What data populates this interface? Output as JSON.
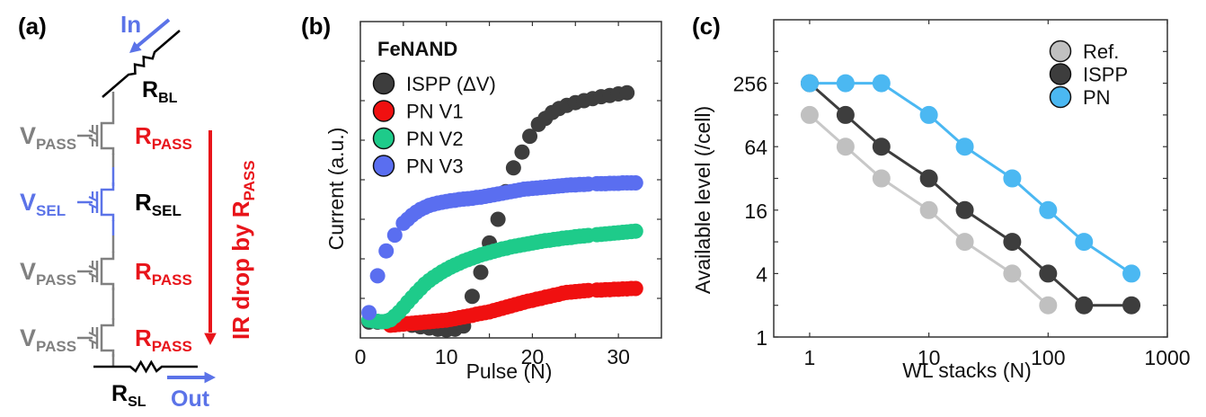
{
  "panels": {
    "a": {
      "label": "(a)"
    },
    "b": {
      "label": "(b)"
    },
    "c": {
      "label": "(c)"
    }
  },
  "circuit": {
    "colors": {
      "pass": "#808080",
      "sel": "#5b73e8",
      "line": "#000000",
      "red": "#e8141a",
      "flow": "#5b73e8"
    },
    "in_label": "In",
    "out_label": "Out",
    "r_bl": {
      "main": "R",
      "sub": "BL"
    },
    "r_sl": {
      "main": "R",
      "sub": "SL"
    },
    "ir_drop": {
      "main": "IR drop by R",
      "sub": "PASS"
    },
    "cells": [
      {
        "gate": {
          "main": "V",
          "sub": "PASS"
        },
        "res": {
          "main": "R",
          "sub": "PASS"
        },
        "type": "pass"
      },
      {
        "gate": {
          "main": "V",
          "sub": "SEL"
        },
        "res": {
          "main": "R",
          "sub": "SEL"
        },
        "type": "sel"
      },
      {
        "gate": {
          "main": "V",
          "sub": "PASS"
        },
        "res": {
          "main": "R",
          "sub": "PASS"
        },
        "type": "pass"
      },
      {
        "gate": {
          "main": "V",
          "sub": "PASS"
        },
        "res": {
          "main": "R",
          "sub": "PASS"
        },
        "type": "pass"
      }
    ]
  },
  "chart_data": [
    {
      "panel": "b",
      "type": "scatter",
      "title": "",
      "xlabel": "Pulse (N)",
      "ylabel": "Current (a.u.)",
      "xlim": [
        0,
        35
      ],
      "ylim": [
        0,
        8
      ],
      "xticks": [
        0,
        10,
        20,
        30
      ],
      "xminor": [
        5,
        15,
        25
      ],
      "yticks": [
        1,
        2,
        3,
        4,
        5,
        6,
        7
      ],
      "ytick_labels_shown": false,
      "legend": {
        "title": "FeNAND",
        "position": "top-left"
      },
      "series": [
        {
          "name": "ISPP (ΔV)",
          "color": "#3d3d3d",
          "edge": "#1a1a1a",
          "points": [
            [
              1,
              0.4
            ],
            [
              2,
              0.4
            ],
            [
              3,
              0.4
            ],
            [
              4,
              0.38
            ],
            [
              5,
              0.35
            ],
            [
              6,
              0.32
            ],
            [
              7,
              0.28
            ],
            [
              8,
              0.25
            ],
            [
              9,
              0.22
            ],
            [
              10,
              0.2
            ],
            [
              11,
              0.22
            ],
            [
              12,
              0.3
            ],
            [
              13,
              1.05
            ],
            [
              14,
              1.66
            ],
            [
              15,
              2.4
            ],
            [
              16,
              3.0
            ],
            [
              16.9,
              3.7
            ],
            [
              17.8,
              4.3
            ],
            [
              18.8,
              4.7
            ],
            [
              19.7,
              5.1
            ],
            [
              20.7,
              5.4
            ],
            [
              21.5,
              5.55
            ],
            [
              22.3,
              5.7
            ],
            [
              23.1,
              5.8
            ],
            [
              24,
              5.88
            ],
            [
              25,
              5.95
            ],
            [
              26,
              6.0
            ],
            [
              27,
              6.05
            ],
            [
              28,
              6.1
            ],
            [
              29,
              6.13
            ],
            [
              30,
              6.17
            ],
            [
              31,
              6.2
            ]
          ]
        },
        {
          "name": "PN V1",
          "color": "#f01010",
          "edge": "#b00000",
          "points": [
            [
              3.5,
              0.32
            ],
            [
              4,
              0.33
            ],
            [
              4.5,
              0.34
            ],
            [
              5,
              0.35
            ],
            [
              5.5,
              0.36
            ],
            [
              6,
              0.37
            ],
            [
              6.5,
              0.38
            ],
            [
              7,
              0.39
            ],
            [
              7.5,
              0.4
            ],
            [
              8,
              0.41
            ],
            [
              8.5,
              0.42
            ],
            [
              9,
              0.43
            ],
            [
              9.5,
              0.44
            ],
            [
              10,
              0.45
            ],
            [
              10.5,
              0.47
            ],
            [
              11,
              0.49
            ],
            [
              11.5,
              0.51
            ],
            [
              12,
              0.53
            ],
            [
              12.5,
              0.55
            ],
            [
              13,
              0.57
            ],
            [
              13.5,
              0.6
            ],
            [
              14,
              0.62
            ],
            [
              14.5,
              0.64
            ],
            [
              15,
              0.66
            ],
            [
              15.5,
              0.69
            ],
            [
              16,
              0.72
            ],
            [
              16.5,
              0.75
            ],
            [
              17,
              0.78
            ],
            [
              17.5,
              0.81
            ],
            [
              18,
              0.84
            ],
            [
              18.5,
              0.87
            ],
            [
              19,
              0.9
            ],
            [
              19.5,
              0.93
            ],
            [
              20,
              0.95
            ],
            [
              20.5,
              0.98
            ],
            [
              21,
              1.0
            ],
            [
              21.5,
              1.03
            ],
            [
              22,
              1.05
            ],
            [
              22.5,
              1.08
            ],
            [
              23,
              1.1
            ],
            [
              23.5,
              1.13
            ],
            [
              24,
              1.15
            ],
            [
              24.5,
              1.16
            ],
            [
              25,
              1.17
            ],
            [
              25.5,
              1.18
            ],
            [
              26,
              1.19
            ],
            [
              26.5,
              1.2
            ],
            [
              27.5,
              1.21
            ],
            [
              28,
              1.21
            ],
            [
              28.5,
              1.22
            ],
            [
              29,
              1.22
            ],
            [
              29.5,
              1.23
            ],
            [
              30,
              1.23
            ],
            [
              30.5,
              1.24
            ],
            [
              31,
              1.24
            ],
            [
              31.5,
              1.25
            ],
            [
              32,
              1.25
            ]
          ]
        },
        {
          "name": "PN V2",
          "color": "#1ecb8a",
          "edge": "#109060",
          "points": [
            [
              1,
              0.45
            ],
            [
              1.5,
              0.43
            ],
            [
              2,
              0.42
            ],
            [
              2.5,
              0.41
            ],
            [
              3,
              0.42
            ],
            [
              3.5,
              0.46
            ],
            [
              4,
              0.55
            ],
            [
              4.5,
              0.65
            ],
            [
              5,
              0.77
            ],
            [
              5.5,
              0.9
            ],
            [
              6,
              1.02
            ],
            [
              6.5,
              1.14
            ],
            [
              7,
              1.25
            ],
            [
              7.5,
              1.36
            ],
            [
              8,
              1.45
            ],
            [
              8.5,
              1.53
            ],
            [
              9,
              1.6
            ],
            [
              9.5,
              1.67
            ],
            [
              10,
              1.73
            ],
            [
              10.5,
              1.79
            ],
            [
              11,
              1.84
            ],
            [
              11.5,
              1.89
            ],
            [
              12,
              1.94
            ],
            [
              12.5,
              1.98
            ],
            [
              13,
              2.02
            ],
            [
              13.5,
              2.06
            ],
            [
              14,
              2.1
            ],
            [
              14.5,
              2.13
            ],
            [
              15,
              2.16
            ],
            [
              15.5,
              2.19
            ],
            [
              16,
              2.22
            ],
            [
              16.5,
              2.25
            ],
            [
              17,
              2.27
            ],
            [
              17.5,
              2.3
            ],
            [
              18,
              2.32
            ],
            [
              18.5,
              2.34
            ],
            [
              19,
              2.36
            ],
            [
              19.5,
              2.38
            ],
            [
              20,
              2.4
            ],
            [
              20.5,
              2.42
            ],
            [
              21,
              2.44
            ],
            [
              21.5,
              2.46
            ],
            [
              22,
              2.47
            ],
            [
              22.5,
              2.49
            ],
            [
              23,
              2.5
            ],
            [
              23.5,
              2.52
            ],
            [
              24,
              2.53
            ],
            [
              24.5,
              2.54
            ],
            [
              25,
              2.56
            ],
            [
              25.5,
              2.57
            ],
            [
              26,
              2.58
            ],
            [
              26.5,
              2.59
            ],
            [
              27.5,
              2.61
            ],
            [
              28,
              2.62
            ],
            [
              28.5,
              2.63
            ],
            [
              29,
              2.64
            ],
            [
              29.5,
              2.65
            ],
            [
              30,
              2.66
            ],
            [
              30.5,
              2.67
            ],
            [
              31,
              2.68
            ],
            [
              31.5,
              2.69
            ],
            [
              32,
              2.7
            ]
          ]
        },
        {
          "name": "PN V3",
          "color": "#5a6ef0",
          "edge": "#2a3ab0",
          "points": [
            [
              1,
              0.64
            ],
            [
              2,
              1.57
            ],
            [
              3,
              2.2
            ],
            [
              4,
              2.6
            ],
            [
              5,
              2.9
            ],
            [
              5.5,
              3.0
            ],
            [
              6,
              3.1
            ],
            [
              6.5,
              3.18
            ],
            [
              7,
              3.25
            ],
            [
              7.5,
              3.3
            ],
            [
              8,
              3.35
            ],
            [
              8.5,
              3.38
            ],
            [
              9,
              3.41
            ],
            [
              9.5,
              3.43
            ],
            [
              10,
              3.45
            ],
            [
              10.5,
              3.47
            ],
            [
              11,
              3.48
            ],
            [
              11.5,
              3.5
            ],
            [
              12,
              3.51
            ],
            [
              12.5,
              3.52
            ],
            [
              13,
              3.53
            ],
            [
              13.5,
              3.55
            ],
            [
              14,
              3.56
            ],
            [
              14.5,
              3.58
            ],
            [
              15,
              3.6
            ],
            [
              15.5,
              3.62
            ],
            [
              16,
              3.64
            ],
            [
              16.5,
              3.66
            ],
            [
              17,
              3.68
            ],
            [
              17.5,
              3.7
            ],
            [
              18,
              3.72
            ],
            [
              18.5,
              3.74
            ],
            [
              19,
              3.76
            ],
            [
              19.5,
              3.77
            ],
            [
              20,
              3.78
            ],
            [
              20.5,
              3.79
            ],
            [
              21,
              3.8
            ],
            [
              21.5,
              3.81
            ],
            [
              22,
              3.82
            ],
            [
              22.5,
              3.83
            ],
            [
              23,
              3.84
            ],
            [
              23.5,
              3.85
            ],
            [
              24,
              3.86
            ],
            [
              24.5,
              3.87
            ],
            [
              25,
              3.87
            ],
            [
              25.5,
              3.88
            ],
            [
              26,
              3.88
            ],
            [
              26.5,
              3.89
            ],
            [
              27.5,
              3.9
            ],
            [
              28,
              3.9
            ],
            [
              28.5,
              3.9
            ],
            [
              29,
              3.91
            ],
            [
              29.5,
              3.91
            ],
            [
              30,
              3.91
            ],
            [
              30.5,
              3.92
            ],
            [
              31,
              3.92
            ],
            [
              31.5,
              3.92
            ],
            [
              32,
              3.92
            ]
          ]
        }
      ]
    },
    {
      "panel": "c",
      "type": "line",
      "title": "",
      "xlabel": "WL stacks (N)",
      "ylabel": "Available level (/cell)",
      "xscale": "log10",
      "yscale": "log2",
      "xlim": [
        0.5,
        1000
      ],
      "ylim": [
        1,
        1024
      ],
      "xticks": [
        1,
        10,
        100,
        1000
      ],
      "xtick_labels": [
        "1",
        "10",
        "100",
        "1000"
      ],
      "yticks": [
        1,
        4,
        16,
        64,
        256
      ],
      "ytick_labels": [
        "1",
        "4",
        "16",
        "64",
        "256"
      ],
      "yminor": [
        2,
        8,
        32,
        128,
        512
      ],
      "legend": {
        "position": "top-right"
      },
      "series": [
        {
          "name": "Ref.",
          "color": "#c0c0c0",
          "line": "#c8c8c8",
          "x": [
            1,
            2,
            4,
            10,
            20,
            50,
            100
          ],
          "y": [
            128,
            64,
            32,
            16,
            8,
            4,
            2
          ]
        },
        {
          "name": "ISPP",
          "color": "#3d3d3d",
          "line": "#3d3d3d",
          "x": [
            1,
            2,
            4,
            10,
            20,
            50,
            100,
            200,
            500
          ],
          "y": [
            256,
            128,
            64,
            32,
            16,
            8,
            4,
            2,
            2
          ]
        },
        {
          "name": "PN",
          "color": "#4bb8f2",
          "line": "#4bb8f2",
          "x": [
            1,
            2,
            4,
            10,
            20,
            50,
            100,
            200,
            500
          ],
          "y": [
            256,
            256,
            256,
            128,
            64,
            32,
            16,
            8,
            4
          ]
        }
      ]
    }
  ]
}
